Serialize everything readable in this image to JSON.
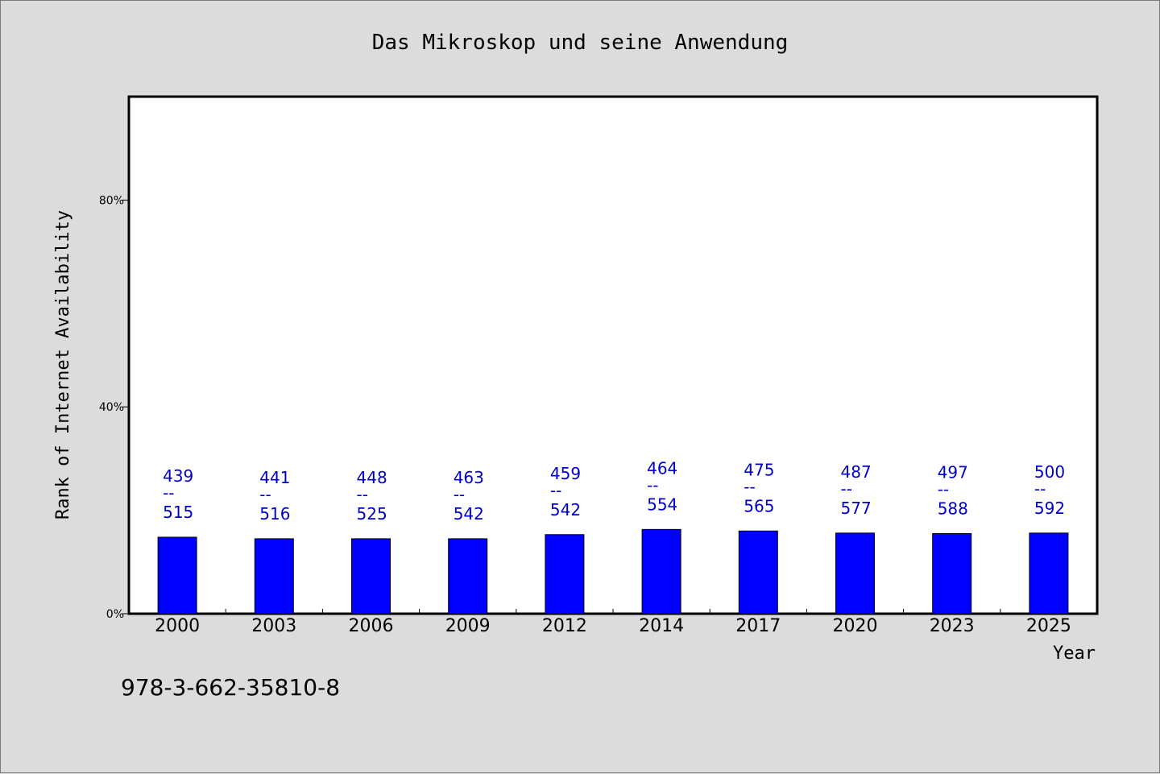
{
  "chart_data": {
    "type": "bar",
    "title": "Das Mikroskop und seine Anwendung",
    "xlabel": "Year",
    "ylabel": "Rank of Internet Availability",
    "ylim": [
      0,
      100
    ],
    "yticks": [
      0,
      40,
      80
    ],
    "ytick_labels": [
      "0%",
      "40%",
      "80%"
    ],
    "categories": [
      "2000",
      "2003",
      "2006",
      "2009",
      "2012",
      "2014",
      "2017",
      "2020",
      "2023",
      "2025"
    ],
    "values": [
      14.8,
      14.5,
      14.5,
      14.5,
      15.3,
      16.3,
      16.0,
      15.6,
      15.5,
      15.6
    ],
    "labels_top": [
      "439",
      "441",
      "448",
      "463",
      "459",
      "464",
      "475",
      "487",
      "497",
      "500"
    ],
    "labels_sep": "--",
    "labels_bottom": [
      "515",
      "516",
      "525",
      "542",
      "542",
      "554",
      "565",
      "577",
      "588",
      "592"
    ],
    "grid": false,
    "bar_color": "#0000ff",
    "label_color": "#0000cc"
  },
  "footer": {
    "isbn": "978-3-662-35810-8"
  }
}
